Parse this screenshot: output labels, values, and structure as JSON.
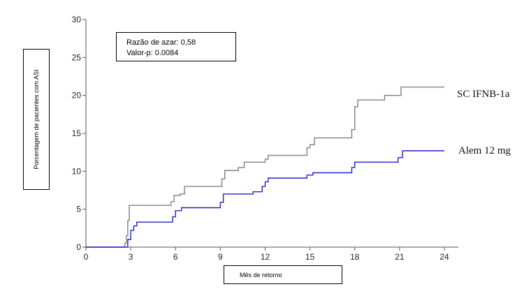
{
  "chart_data": {
    "type": "line",
    "ylabel": "Porcentagem de pacientes com ASI",
    "xlabel": "Mês de retorno",
    "xlim": [
      0,
      24
    ],
    "ylim": [
      0,
      30
    ],
    "x_ticks": [
      0,
      3,
      6,
      9,
      12,
      15,
      18,
      21,
      24
    ],
    "y_ticks": [
      0,
      5,
      10,
      15,
      20,
      25,
      30
    ],
    "annotation": {
      "hazard_ratio": "Razão de azar: 0,58",
      "p_value": "Valor-p: 0.0084"
    },
    "series": [
      {
        "name": "SC IFNB-1a",
        "color": "#808080",
        "step": true,
        "points": [
          [
            0,
            0
          ],
          [
            2.6,
            0
          ],
          [
            2.6,
            0.5
          ],
          [
            2.7,
            1.5
          ],
          [
            2.8,
            3.5
          ],
          [
            2.9,
            5.5
          ],
          [
            5.6,
            5.5
          ],
          [
            5.7,
            6
          ],
          [
            5.9,
            6.8
          ],
          [
            6.3,
            7
          ],
          [
            6.6,
            8
          ],
          [
            8.9,
            8
          ],
          [
            9.1,
            9
          ],
          [
            9.3,
            10.1
          ],
          [
            9.8,
            10.1
          ],
          [
            10.2,
            10.5
          ],
          [
            10.6,
            11.2
          ],
          [
            11.8,
            11.2
          ],
          [
            12.0,
            11.6
          ],
          [
            12.2,
            12.1
          ],
          [
            14.6,
            12.1
          ],
          [
            14.8,
            13.1
          ],
          [
            15.0,
            13.5
          ],
          [
            15.3,
            14.4
          ],
          [
            17.6,
            14.4
          ],
          [
            17.8,
            15.5
          ],
          [
            18.0,
            18.5
          ],
          [
            18.2,
            19.4
          ],
          [
            19.8,
            19.4
          ],
          [
            20.0,
            20
          ],
          [
            20.9,
            20
          ],
          [
            21.1,
            21.1
          ],
          [
            24,
            21.1
          ]
        ]
      },
      {
        "name": "Alem 12 mg",
        "color": "#2222cc",
        "step": true,
        "points": [
          [
            0,
            0
          ],
          [
            2.6,
            0
          ],
          [
            2.8,
            1
          ],
          [
            3.0,
            2.2
          ],
          [
            3.2,
            2.8
          ],
          [
            3.4,
            3.3
          ],
          [
            5.6,
            3.3
          ],
          [
            5.8,
            4
          ],
          [
            6.0,
            4.8
          ],
          [
            6.4,
            5.2
          ],
          [
            8.9,
            5.2
          ],
          [
            9.0,
            5.9
          ],
          [
            9.2,
            7
          ],
          [
            11.0,
            7
          ],
          [
            11.2,
            7.3
          ],
          [
            11.6,
            7.3
          ],
          [
            11.8,
            8
          ],
          [
            12.0,
            8.6
          ],
          [
            12.2,
            9.1
          ],
          [
            14.6,
            9.1
          ],
          [
            14.8,
            9.5
          ],
          [
            15.2,
            9.8
          ],
          [
            17.6,
            9.8
          ],
          [
            17.8,
            10.5
          ],
          [
            18.0,
            11.2
          ],
          [
            20.6,
            11.2
          ],
          [
            20.9,
            11.8
          ],
          [
            21.2,
            12.7
          ],
          [
            24,
            12.7
          ]
        ]
      }
    ]
  }
}
